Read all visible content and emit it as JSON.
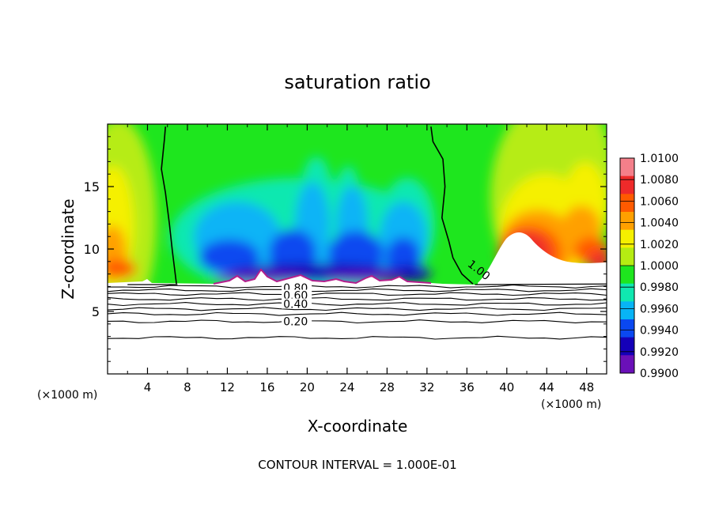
{
  "chart_data": {
    "type": "heatmap",
    "title": "saturation ratio",
    "xlabel": "X-coordinate",
    "ylabel": "Z-coordinate",
    "x_unit_left": "(×1000 m)",
    "x_unit_right": "(×1000 m)",
    "footer": "CONTOUR INTERVAL = 1.000E-01",
    "xlim": [
      0,
      50
    ],
    "ylim": [
      0,
      20
    ],
    "x_ticks": [
      4,
      8,
      12,
      16,
      20,
      24,
      28,
      32,
      36,
      40,
      44,
      48
    ],
    "y_ticks": [
      5,
      10,
      15
    ],
    "colorbar": {
      "levels": [
        "1.0100",
        "1.0080",
        "1.0060",
        "1.0040",
        "1.0020",
        "1.0000",
        "0.9980",
        "0.9960",
        "0.9940",
        "0.9920",
        "0.9900"
      ],
      "colors": [
        "#f47f8a",
        "#ee2a2a",
        "#ff5a00",
        "#ffa000",
        "#f5f000",
        "#b6ec12",
        "#1ee61e",
        "#10e8b0",
        "#08b4f6",
        "#0a48f0",
        "#1400b8",
        "#6a10b8"
      ]
    },
    "contour_labels": [
      {
        "text": "1.00",
        "x": 36.0,
        "y": 9.0
      },
      {
        "text": "0.80",
        "x": 17.6,
        "y": 6.9
      },
      {
        "text": "0.60",
        "x": 17.6,
        "y": 6.3
      },
      {
        "text": "0.40",
        "x": 17.6,
        "y": 5.6
      },
      {
        "text": "0.20",
        "x": 17.6,
        "y": 4.2
      }
    ],
    "contour_one_left": [
      [
        5.8,
        19.8
      ],
      [
        5.7,
        18.8
      ],
      [
        5.4,
        16.4
      ],
      [
        5.8,
        14.5
      ],
      [
        6.2,
        12.0
      ],
      [
        6.5,
        9.8
      ],
      [
        6.9,
        7.2
      ]
    ],
    "contour_one_right": [
      [
        32.4,
        19.8
      ],
      [
        32.6,
        18.6
      ],
      [
        33.6,
        17.2
      ],
      [
        33.8,
        15.0
      ],
      [
        33.5,
        12.5
      ],
      [
        34.2,
        10.6
      ],
      [
        34.6,
        9.3
      ],
      [
        35.5,
        8.0
      ],
      [
        36.6,
        7.2
      ]
    ],
    "lower_contours": [
      {
        "level": 0.9,
        "y": 7.0
      },
      {
        "level": 0.8,
        "y": 6.7
      },
      {
        "level": 0.7,
        "y": 6.4
      },
      {
        "level": 0.6,
        "y": 6.0
      },
      {
        "level": 0.5,
        "y": 5.6
      },
      {
        "level": 0.4,
        "y": 5.2
      },
      {
        "level": 0.3,
        "y": 4.8
      },
      {
        "level": 0.2,
        "y": 4.2
      },
      {
        "level": 0.1,
        "y": 2.9
      }
    ]
  }
}
